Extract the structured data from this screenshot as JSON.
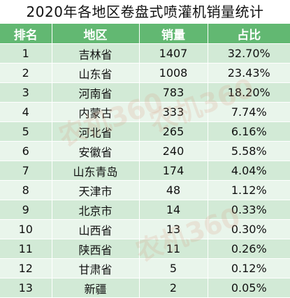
{
  "title": "2020年各地区卷盘式喷灌机销量统计",
  "table": {
    "headers": [
      "排名",
      "地区",
      "销量",
      "占比"
    ],
    "rows": [
      {
        "rank": "1",
        "region": "吉林省",
        "sales": "1407",
        "share": "32.70%"
      },
      {
        "rank": "2",
        "region": "山东省",
        "sales": "1008",
        "share": "23.43%"
      },
      {
        "rank": "3",
        "region": "河南省",
        "sales": "783",
        "share": "18.20%"
      },
      {
        "rank": "4",
        "region": "内蒙古",
        "sales": "333",
        "share": "7.74%"
      },
      {
        "rank": "5",
        "region": "河北省",
        "sales": "265",
        "share": "6.16%"
      },
      {
        "rank": "6",
        "region": "安徽省",
        "sales": "240",
        "share": "5.58%"
      },
      {
        "rank": "7",
        "region": "山东青岛",
        "sales": "174",
        "share": "4.04%"
      },
      {
        "rank": "8",
        "region": "天津市",
        "sales": "48",
        "share": "1.12%"
      },
      {
        "rank": "9",
        "region": "北京市",
        "sales": "14",
        "share": "0.33%"
      },
      {
        "rank": "10",
        "region": "山西省",
        "sales": "13",
        "share": "0.30%"
      },
      {
        "rank": "11",
        "region": "陕西省",
        "sales": "11",
        "share": "0.26%"
      },
      {
        "rank": "12",
        "region": "甘肃省",
        "sales": "5",
        "share": "0.12%"
      },
      {
        "rank": "13",
        "region": "新疆",
        "sales": "2",
        "share": "0.05%"
      }
    ]
  },
  "watermark": {
    "text_1": "农机360",
    "text_2": "农机360",
    "text_3": "农机360"
  },
  "colors": {
    "header_bg": "#62b872",
    "row_dark": "#d2ead6",
    "row_light": "#e9f5eb"
  }
}
